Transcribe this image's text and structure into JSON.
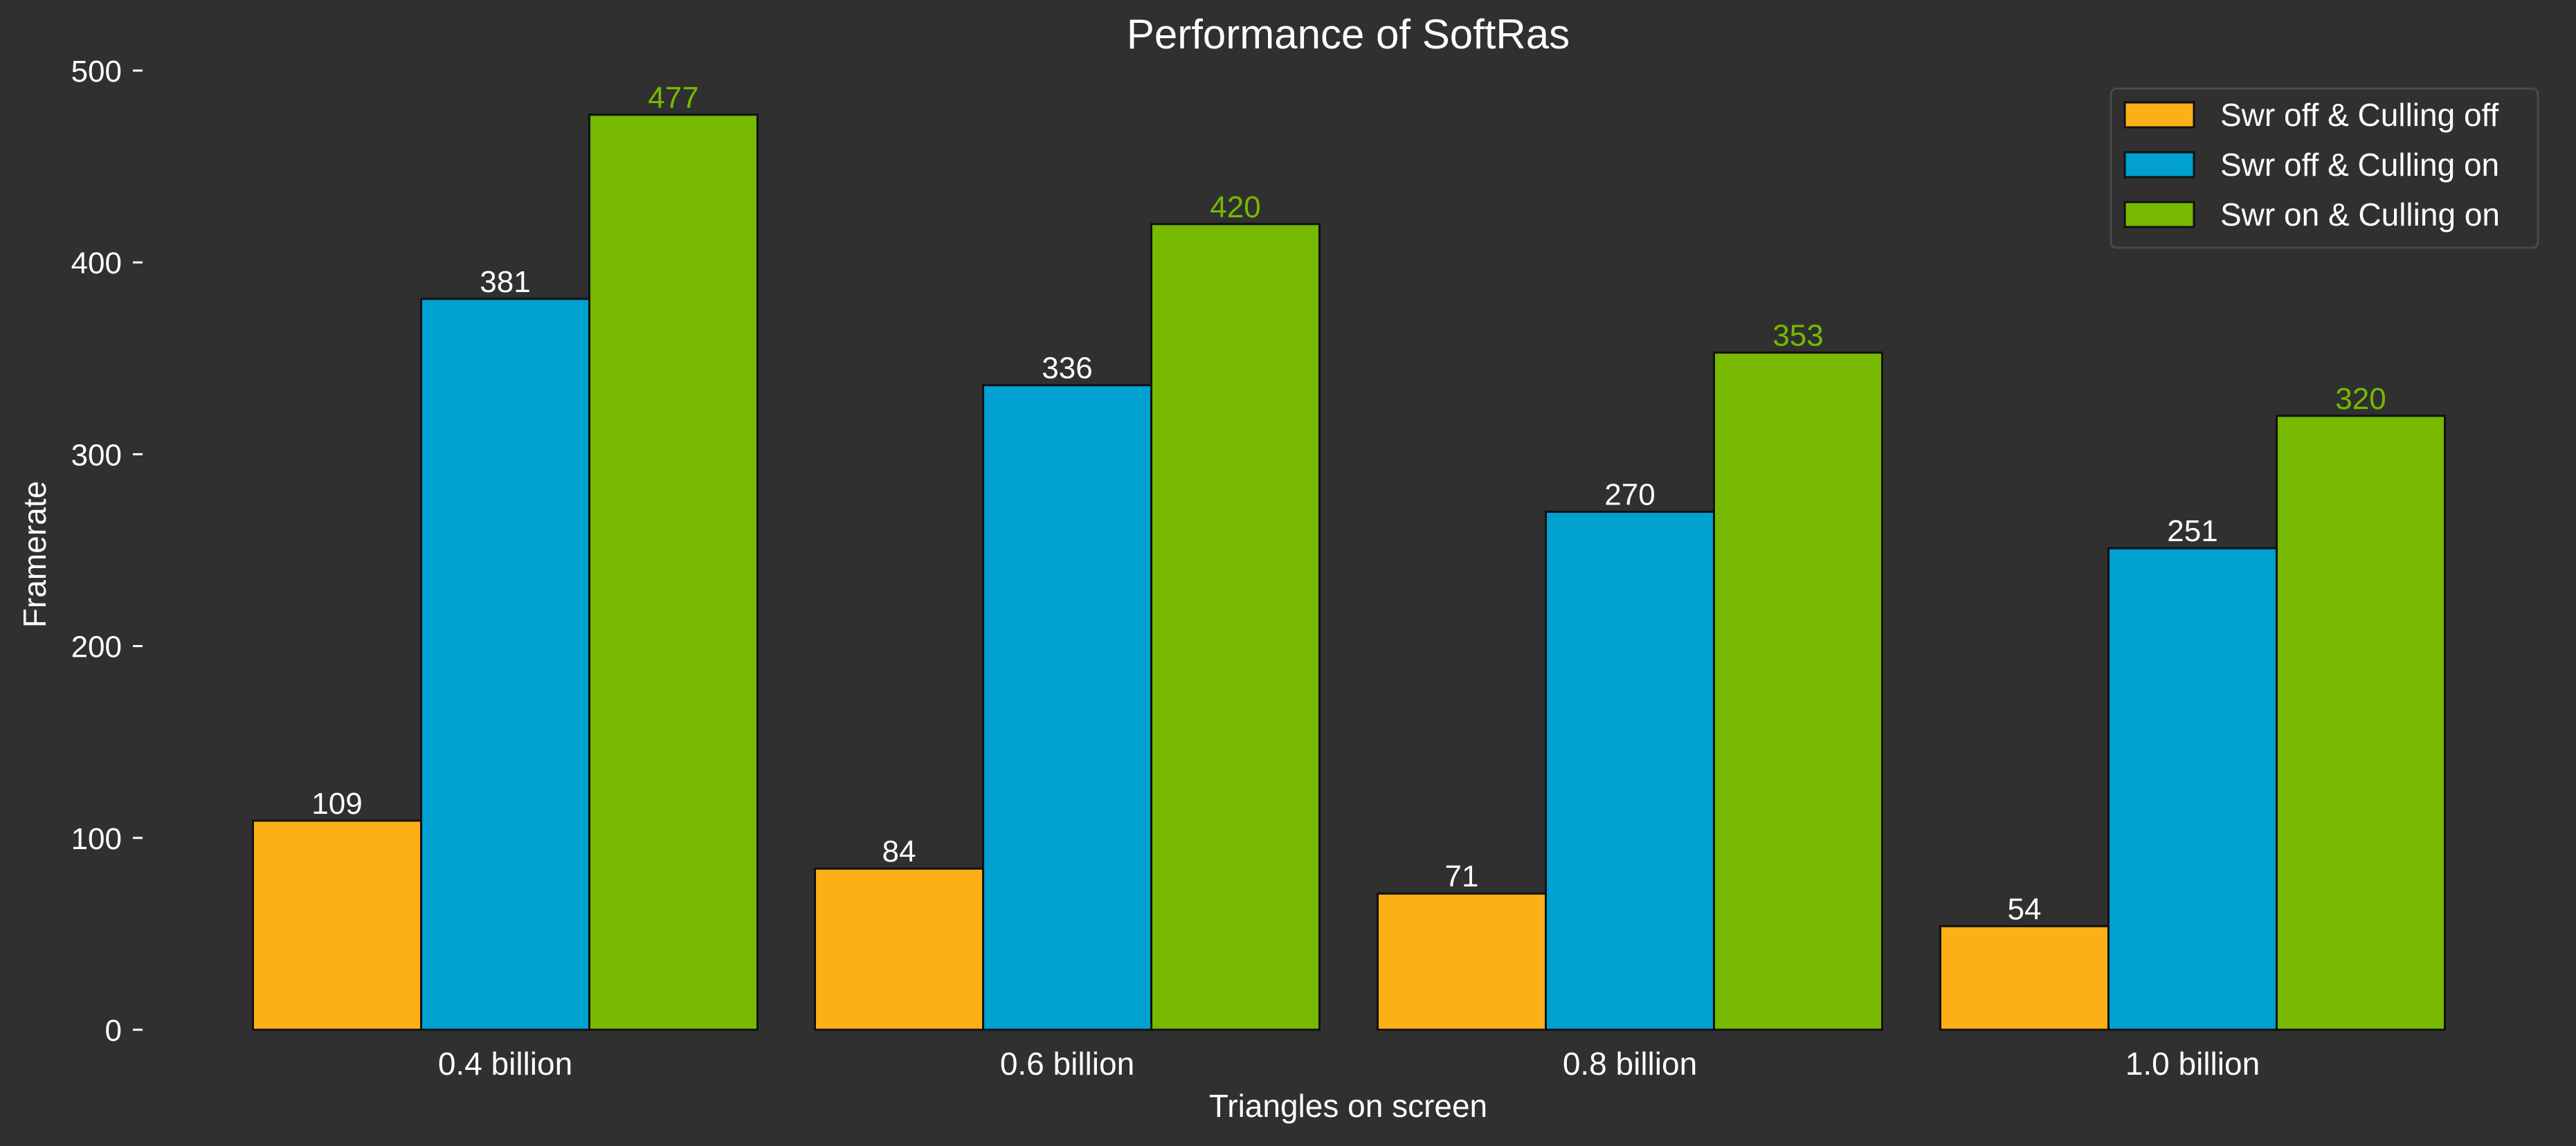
{
  "colors": {
    "background": "#303030",
    "text": "#ffffff",
    "bar_edge": "#111111",
    "legend_bg": "#303030",
    "legend_edge": "#4a4a4a"
  },
  "chart_data": {
    "type": "bar",
    "title": "Performance of SoftRas",
    "xlabel": "Triangles on screen",
    "ylabel": "Framerate",
    "categories": [
      "0.4 billion",
      "0.6 billion",
      "0.8 billion",
      "1.0 billion"
    ],
    "ylim": [
      0,
      500
    ],
    "yticks": [
      0,
      100,
      200,
      300,
      400,
      500
    ],
    "grid": false,
    "legend_position": "top-right",
    "series": [
      {
        "name": "Swr off & Culling off",
        "color": "#fcaf17",
        "label_color": "#ffffff",
        "values": [
          109,
          84,
          71,
          54
        ]
      },
      {
        "name": "Swr off & Culling on",
        "color": "#00a0d0",
        "label_color": "#ffffff",
        "values": [
          381,
          336,
          270,
          251
        ]
      },
      {
        "name": "Swr on & Culling on",
        "color": "#76b900",
        "label_color": "#76b900",
        "values": [
          477,
          420,
          353,
          320
        ]
      }
    ]
  }
}
